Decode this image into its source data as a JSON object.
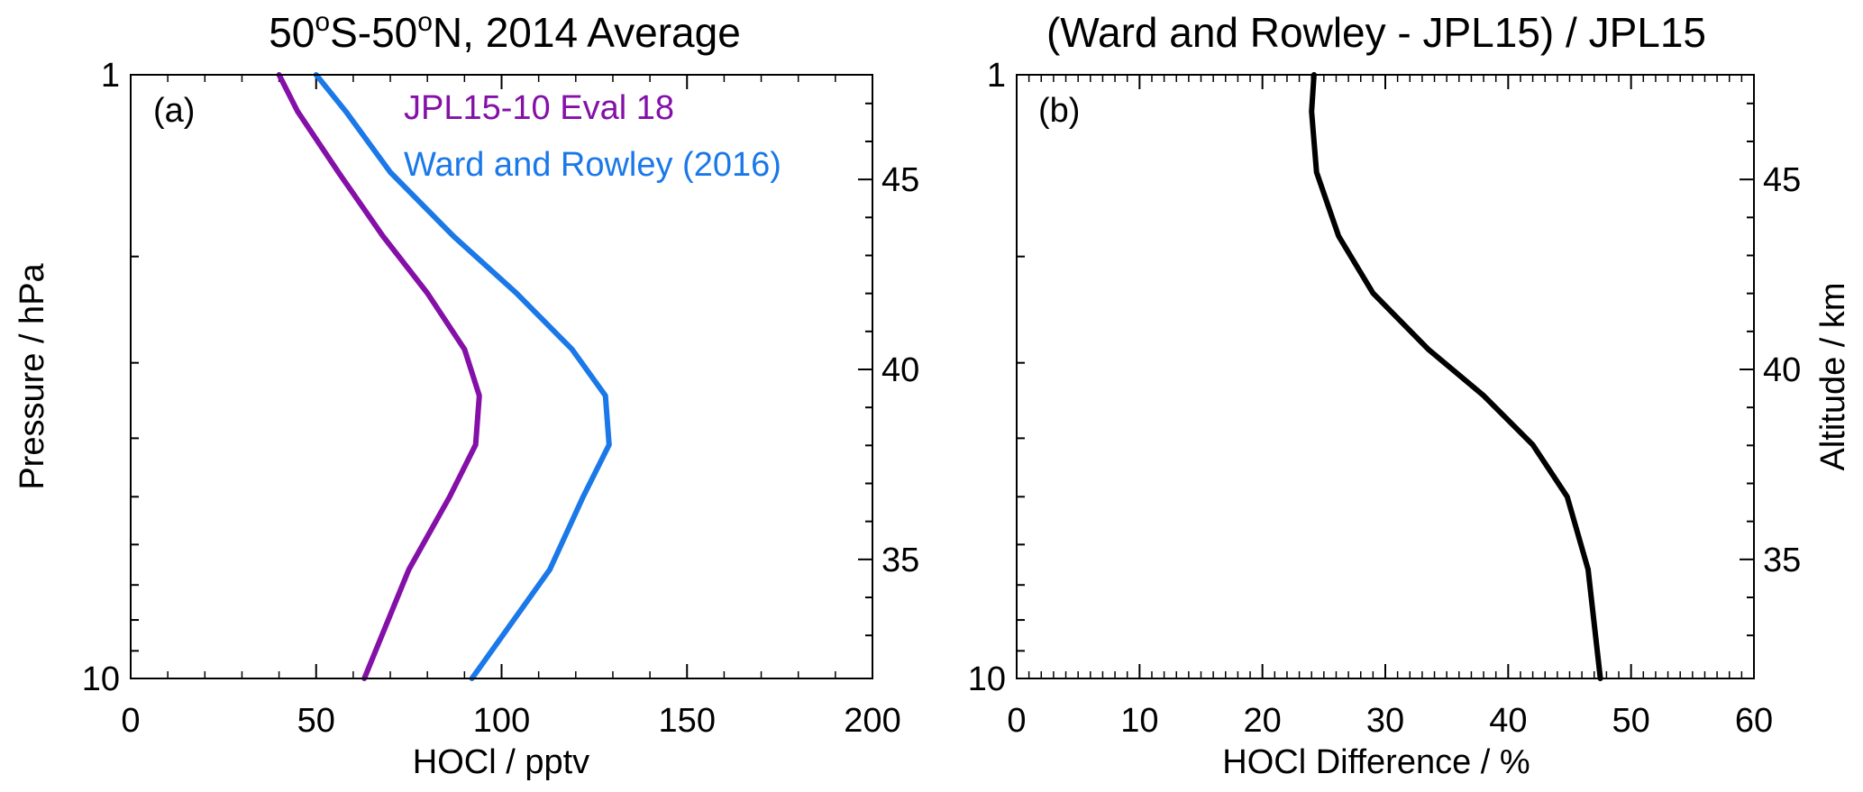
{
  "chart_data": [
    {
      "type": "line",
      "panel_label": "(a)",
      "title": {
        "pre": "50",
        "sup1": "o",
        "mid": "S-50",
        "sup2": "o",
        "post": "N, 2014 Average"
      },
      "xlabel": "HOCl / pptv",
      "ylabel": "Pressure / hPa",
      "y2label": "",
      "xlim": [
        0,
        200
      ],
      "ylim": [
        10,
        1
      ],
      "yscale": "log",
      "xticks": [
        0,
        50,
        100,
        150,
        200
      ],
      "yticks": [
        1,
        10
      ],
      "y2ticks": [
        45,
        40,
        35
      ],
      "series": [
        {
          "name": "JPL15-10 Eval 18",
          "color": "#8410a8",
          "x": [
            40,
            45,
            56,
            68,
            80,
            90,
            94,
            93,
            86,
            75,
            63
          ],
          "y": [
            1.0,
            1.15,
            1.45,
            1.85,
            2.3,
            2.85,
            3.4,
            4.1,
            5.0,
            6.6,
            10.0
          ]
        },
        {
          "name": "Ward and Rowley (2016)",
          "color": "#1a78e8",
          "x": [
            50,
            58,
            70,
            87,
            104,
            119,
            128,
            129,
            122,
            113,
            92
          ],
          "y": [
            1.0,
            1.15,
            1.45,
            1.85,
            2.3,
            2.85,
            3.4,
            4.1,
            5.0,
            6.6,
            10.0
          ]
        }
      ]
    },
    {
      "type": "line",
      "panel_label": "(b)",
      "title": "(Ward and Rowley - JPL15) / JPL15",
      "xlabel": "HOCl Difference / %",
      "ylabel": "",
      "y2label": "Altitude / km",
      "xlim": [
        0,
        60
      ],
      "ylim": [
        10,
        1
      ],
      "yscale": "log",
      "xticks": [
        0,
        10,
        20,
        30,
        40,
        50,
        60
      ],
      "yticks": [
        1,
        10
      ],
      "y2ticks": [
        45,
        40,
        35
      ],
      "series": [
        {
          "name": "",
          "color": "#000000",
          "x": [
            24.2,
            24.0,
            24.4,
            26.2,
            29.0,
            33.5,
            38.0,
            42.0,
            44.8,
            46.5,
            47.5
          ],
          "y": [
            1.0,
            1.15,
            1.45,
            1.85,
            2.3,
            2.85,
            3.4,
            4.1,
            5.0,
            6.6,
            10.0
          ]
        }
      ]
    }
  ]
}
